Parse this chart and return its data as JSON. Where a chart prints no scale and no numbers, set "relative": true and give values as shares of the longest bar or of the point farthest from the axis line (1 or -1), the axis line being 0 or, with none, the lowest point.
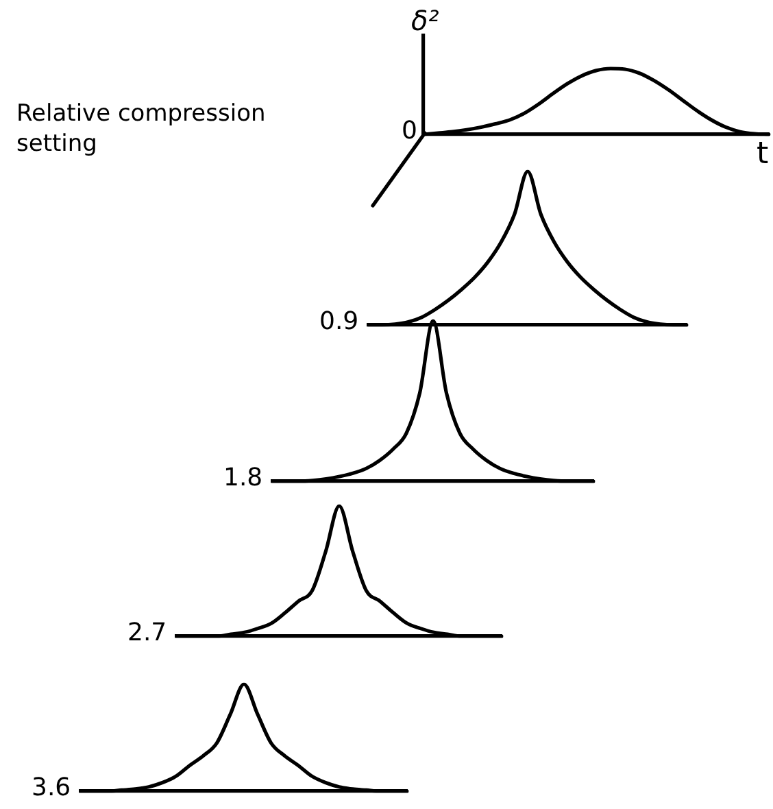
{
  "chart_data": [
    {
      "type": "line",
      "relative": true,
      "tick_labels": false,
      "xlabel": "t",
      "ylabel": "δ²",
      "annotations": [
        "0"
      ],
      "categories": [
        null,
        null,
        null,
        null,
        null,
        null,
        null,
        null,
        null,
        null,
        null,
        null,
        null,
        null,
        null,
        null,
        null,
        null,
        null,
        null,
        null,
        null,
        null,
        null,
        null
      ],
      "series": [
        {
          "color": "#000000",
          "values": [
            0,
            0.02,
            0.04,
            0.07,
            0.11,
            0.16,
            0.22,
            0.32,
            0.46,
            0.62,
            0.77,
            0.89,
            0.97,
            1,
            0.99,
            0.93,
            0.82,
            0.68,
            0.52,
            0.36,
            0.22,
            0.11,
            0.04,
            0.01,
            0
          ]
        }
      ]
    },
    {
      "type": "line",
      "relative": true,
      "tick_labels": false,
      "annotations": [
        "Relative compression setting"
      ],
      "categories": [
        null,
        null,
        null,
        null,
        null,
        null,
        null,
        null,
        null,
        null,
        null,
        null,
        null,
        null,
        null,
        null,
        null,
        null,
        null,
        null,
        null,
        null,
        null,
        null,
        null
      ],
      "series": [
        {
          "name": "0.9",
          "color": "#000000",
          "values": [
            0,
            0,
            0.005,
            0.02,
            0.05,
            0.1,
            0.16,
            0.23,
            0.31,
            0.41,
            0.54,
            0.72,
            1,
            0.72,
            0.54,
            0.41,
            0.31,
            0.23,
            0.16,
            0.1,
            0.05,
            0.02,
            0.005,
            0,
            0
          ]
        }
      ]
    },
    {
      "type": "line",
      "relative": true,
      "tick_labels": false,
      "categories": [
        null,
        null,
        null,
        null,
        null,
        null,
        null,
        null,
        null,
        null,
        null,
        null,
        null,
        null,
        null,
        null,
        null,
        null,
        null,
        null,
        null,
        null,
        null,
        null,
        null
      ],
      "series": [
        {
          "name": "1.8",
          "color": "#000000",
          "values": [
            0,
            0,
            0,
            0.005,
            0.015,
            0.03,
            0.05,
            0.08,
            0.13,
            0.2,
            0.3,
            0.55,
            1,
            0.55,
            0.3,
            0.2,
            0.13,
            0.08,
            0.05,
            0.03,
            0.015,
            0.005,
            0,
            0,
            0
          ]
        }
      ]
    },
    {
      "type": "line",
      "relative": true,
      "tick_labels": false,
      "categories": [
        null,
        null,
        null,
        null,
        null,
        null,
        null,
        null,
        null,
        null,
        null,
        null,
        null,
        null,
        null,
        null,
        null,
        null,
        null,
        null,
        null,
        null,
        null,
        null,
        null
      ],
      "series": [
        {
          "name": "2.7",
          "color": "#000000",
          "values": [
            0,
            0,
            0,
            0,
            0.015,
            0.03,
            0.06,
            0.1,
            0.18,
            0.27,
            0.35,
            0.65,
            1,
            0.65,
            0.35,
            0.27,
            0.18,
            0.1,
            0.06,
            0.03,
            0.015,
            0,
            0,
            0,
            0
          ]
        }
      ]
    },
    {
      "type": "line",
      "relative": true,
      "tick_labels": false,
      "categories": [
        null,
        null,
        null,
        null,
        null,
        null,
        null,
        null,
        null,
        null,
        null,
        null,
        null,
        null,
        null,
        null,
        null,
        null,
        null,
        null,
        null,
        null,
        null,
        null,
        null
      ],
      "series": [
        {
          "name": "3.6",
          "color": "#000000",
          "values": [
            0,
            0,
            0,
            0.01,
            0.02,
            0.04,
            0.08,
            0.14,
            0.24,
            0.33,
            0.45,
            0.72,
            1,
            0.72,
            0.45,
            0.33,
            0.24,
            0.14,
            0.08,
            0.04,
            0.02,
            0.01,
            0,
            0,
            0
          ]
        }
      ]
    }
  ]
}
